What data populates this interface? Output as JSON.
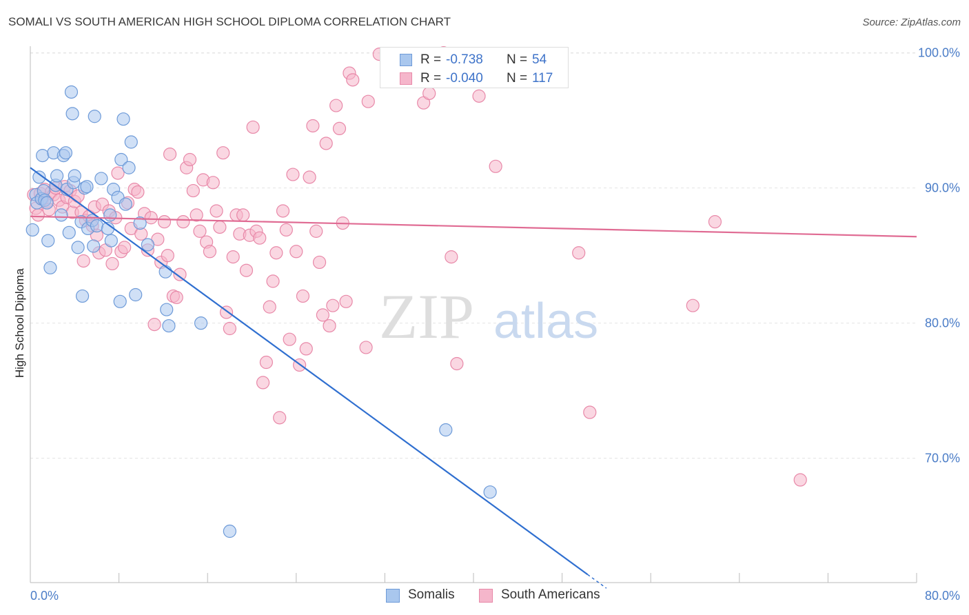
{
  "title": "SOMALI VS SOUTH AMERICAN HIGH SCHOOL DIPLOMA CORRELATION CHART",
  "source": "Source: ZipAtlas.com",
  "watermark": {
    "zip": "ZIP",
    "atlas": "atlas"
  },
  "legend": [
    {
      "r_label": "R =",
      "r_value": "-0.738",
      "n_label": "N =",
      "n_value": "54"
    },
    {
      "r_label": "R =",
      "r_value": "-0.040",
      "n_label": "N =",
      "n_value": "117"
    }
  ],
  "bottom_legend": {
    "somalis": "Somalis",
    "south_americans": "South Americans"
  },
  "chart_data": {
    "type": "scatter",
    "xlabel": "",
    "ylabel": "High School Diploma",
    "xlim": [
      0,
      80
    ],
    "ylim": [
      60.8,
      100.9
    ],
    "x_tick_labels": {
      "left": "0.0%",
      "right": "80.0%"
    },
    "y_ticks": [
      {
        "value": 100,
        "label": "100.0%"
      },
      {
        "value": 90,
        "label": "90.0%"
      },
      {
        "value": 80,
        "label": "80.0%"
      },
      {
        "value": 70,
        "label": "70.0%"
      }
    ],
    "grid": true,
    "colors": {
      "somalis_fill": "#a9c7ee",
      "somalis_stroke": "#6d9ad8",
      "somalis_line": "#2f6fd0",
      "sa_fill": "#f5b6cb",
      "sa_stroke": "#e888a8",
      "sa_line": "#e06b93",
      "axis_text": "#4a7cc7"
    },
    "series": [
      {
        "name": "Somalis",
        "trend": {
          "x0": 0,
          "y0": 91.5,
          "x1": 50.3,
          "y1": 61.4,
          "dash_to_x": 52.0
        },
        "points": [
          [
            0.2,
            86.9
          ],
          [
            0.5,
            89.5
          ],
          [
            0.6,
            88.9
          ],
          [
            0.8,
            90.8
          ],
          [
            1.0,
            89.2
          ],
          [
            1.1,
            92.4
          ],
          [
            1.2,
            89.8
          ],
          [
            1.3,
            89.1
          ],
          [
            1.5,
            88.9
          ],
          [
            1.6,
            86.1
          ],
          [
            1.8,
            84.1
          ],
          [
            2.1,
            92.6
          ],
          [
            2.3,
            90.2
          ],
          [
            2.4,
            90.9
          ],
          [
            2.8,
            88.0
          ],
          [
            3.0,
            92.4
          ],
          [
            3.2,
            92.6
          ],
          [
            3.3,
            89.9
          ],
          [
            3.5,
            86.7
          ],
          [
            3.7,
            97.1
          ],
          [
            3.8,
            95.5
          ],
          [
            3.9,
            90.4
          ],
          [
            4.0,
            90.9
          ],
          [
            4.3,
            85.6
          ],
          [
            4.6,
            87.5
          ],
          [
            4.7,
            82.0
          ],
          [
            4.9,
            90.0
          ],
          [
            5.1,
            90.1
          ],
          [
            5.2,
            87.0
          ],
          [
            5.6,
            87.6
          ],
          [
            5.7,
            85.7
          ],
          [
            5.8,
            95.3
          ],
          [
            6.0,
            87.2
          ],
          [
            6.4,
            90.7
          ],
          [
            7.0,
            87.0
          ],
          [
            7.2,
            88.0
          ],
          [
            7.3,
            86.1
          ],
          [
            7.5,
            89.9
          ],
          [
            7.9,
            89.3
          ],
          [
            8.1,
            81.6
          ],
          [
            8.2,
            92.1
          ],
          [
            8.4,
            95.1
          ],
          [
            8.6,
            88.8
          ],
          [
            8.9,
            91.5
          ],
          [
            9.1,
            93.4
          ],
          [
            9.5,
            82.1
          ],
          [
            9.9,
            87.4
          ],
          [
            10.6,
            85.8
          ],
          [
            12.2,
            83.8
          ],
          [
            12.3,
            81.0
          ],
          [
            12.5,
            79.8
          ],
          [
            15.4,
            80.0
          ],
          [
            18.0,
            64.6
          ],
          [
            37.5,
            72.1
          ],
          [
            41.5,
            67.5
          ]
        ]
      },
      {
        "name": "South Americans",
        "trend": {
          "x0": 0,
          "y0": 87.9,
          "x1": 80,
          "y1": 86.4
        },
        "points": [
          [
            0.3,
            89.5
          ],
          [
            0.5,
            88.5
          ],
          [
            0.7,
            88.0
          ],
          [
            0.9,
            89.6
          ],
          [
            1.1,
            89.2
          ],
          [
            1.3,
            89.9
          ],
          [
            1.5,
            89.0
          ],
          [
            1.7,
            88.4
          ],
          [
            1.9,
            89.7
          ],
          [
            2.1,
            89.5
          ],
          [
            2.3,
            90.0
          ],
          [
            2.6,
            89.1
          ],
          [
            2.9,
            88.6
          ],
          [
            3.1,
            90.1
          ],
          [
            3.3,
            89.3
          ],
          [
            3.6,
            89.8
          ],
          [
            3.8,
            88.2
          ],
          [
            4.0,
            89.0
          ],
          [
            4.3,
            89.4
          ],
          [
            4.6,
            88.2
          ],
          [
            4.8,
            84.6
          ],
          [
            5.0,
            87.6
          ],
          [
            5.3,
            87.9
          ],
          [
            5.6,
            87.2
          ],
          [
            5.8,
            88.6
          ],
          [
            6.0,
            86.5
          ],
          [
            6.2,
            85.2
          ],
          [
            6.5,
            88.8
          ],
          [
            6.8,
            85.4
          ],
          [
            7.1,
            88.3
          ],
          [
            7.4,
            84.4
          ],
          [
            7.7,
            87.8
          ],
          [
            7.9,
            91.1
          ],
          [
            8.2,
            85.3
          ],
          [
            8.5,
            85.6
          ],
          [
            8.8,
            88.9
          ],
          [
            9.1,
            87.0
          ],
          [
            9.4,
            89.9
          ],
          [
            9.7,
            89.7
          ],
          [
            10.0,
            86.6
          ],
          [
            10.3,
            88.1
          ],
          [
            10.6,
            85.4
          ],
          [
            10.9,
            87.8
          ],
          [
            11.2,
            79.9
          ],
          [
            11.5,
            86.2
          ],
          [
            11.8,
            84.5
          ],
          [
            12.1,
            87.5
          ],
          [
            12.4,
            85.0
          ],
          [
            12.6,
            92.5
          ],
          [
            12.9,
            82.0
          ],
          [
            13.2,
            81.9
          ],
          [
            13.5,
            83.6
          ],
          [
            13.8,
            87.5
          ],
          [
            14.1,
            91.5
          ],
          [
            14.4,
            92.1
          ],
          [
            14.7,
            89.8
          ],
          [
            15.0,
            88.0
          ],
          [
            15.3,
            86.8
          ],
          [
            15.6,
            90.6
          ],
          [
            15.9,
            86.0
          ],
          [
            16.2,
            85.3
          ],
          [
            16.5,
            90.4
          ],
          [
            16.8,
            88.3
          ],
          [
            17.1,
            87.1
          ],
          [
            17.4,
            92.6
          ],
          [
            17.7,
            80.8
          ],
          [
            18.0,
            79.6
          ],
          [
            18.3,
            84.9
          ],
          [
            18.6,
            88.0
          ],
          [
            18.9,
            86.6
          ],
          [
            19.2,
            88.0
          ],
          [
            19.5,
            83.9
          ],
          [
            19.8,
            86.5
          ],
          [
            20.1,
            94.5
          ],
          [
            20.4,
            86.8
          ],
          [
            20.7,
            86.3
          ],
          [
            21.0,
            75.6
          ],
          [
            21.3,
            77.1
          ],
          [
            21.6,
            81.2
          ],
          [
            21.9,
            83.1
          ],
          [
            22.2,
            85.2
          ],
          [
            22.5,
            73.0
          ],
          [
            22.8,
            88.3
          ],
          [
            23.1,
            86.9
          ],
          [
            23.4,
            78.8
          ],
          [
            23.7,
            91.0
          ],
          [
            24.0,
            85.3
          ],
          [
            24.3,
            76.9
          ],
          [
            24.6,
            82.0
          ],
          [
            24.9,
            78.1
          ],
          [
            25.2,
            90.8
          ],
          [
            25.5,
            94.6
          ],
          [
            25.8,
            86.8
          ],
          [
            26.1,
            84.5
          ],
          [
            26.4,
            80.6
          ],
          [
            26.7,
            93.3
          ],
          [
            27.0,
            79.8
          ],
          [
            27.3,
            81.3
          ],
          [
            27.6,
            96.1
          ],
          [
            27.9,
            94.4
          ],
          [
            28.2,
            87.4
          ],
          [
            28.5,
            81.6
          ],
          [
            28.8,
            98.5
          ],
          [
            29.1,
            98.0
          ],
          [
            30.3,
            78.2
          ],
          [
            30.5,
            96.4
          ],
          [
            31.5,
            99.9
          ],
          [
            35.5,
            96.3
          ],
          [
            36.0,
            97.0
          ],
          [
            37.3,
            100.0
          ],
          [
            38.0,
            84.9
          ],
          [
            38.5,
            77.0
          ],
          [
            40.5,
            96.8
          ],
          [
            42.0,
            91.6
          ],
          [
            49.5,
            85.2
          ],
          [
            50.5,
            73.4
          ],
          [
            59.8,
            81.3
          ],
          [
            61.8,
            87.5
          ],
          [
            69.5,
            68.4
          ]
        ]
      }
    ]
  }
}
